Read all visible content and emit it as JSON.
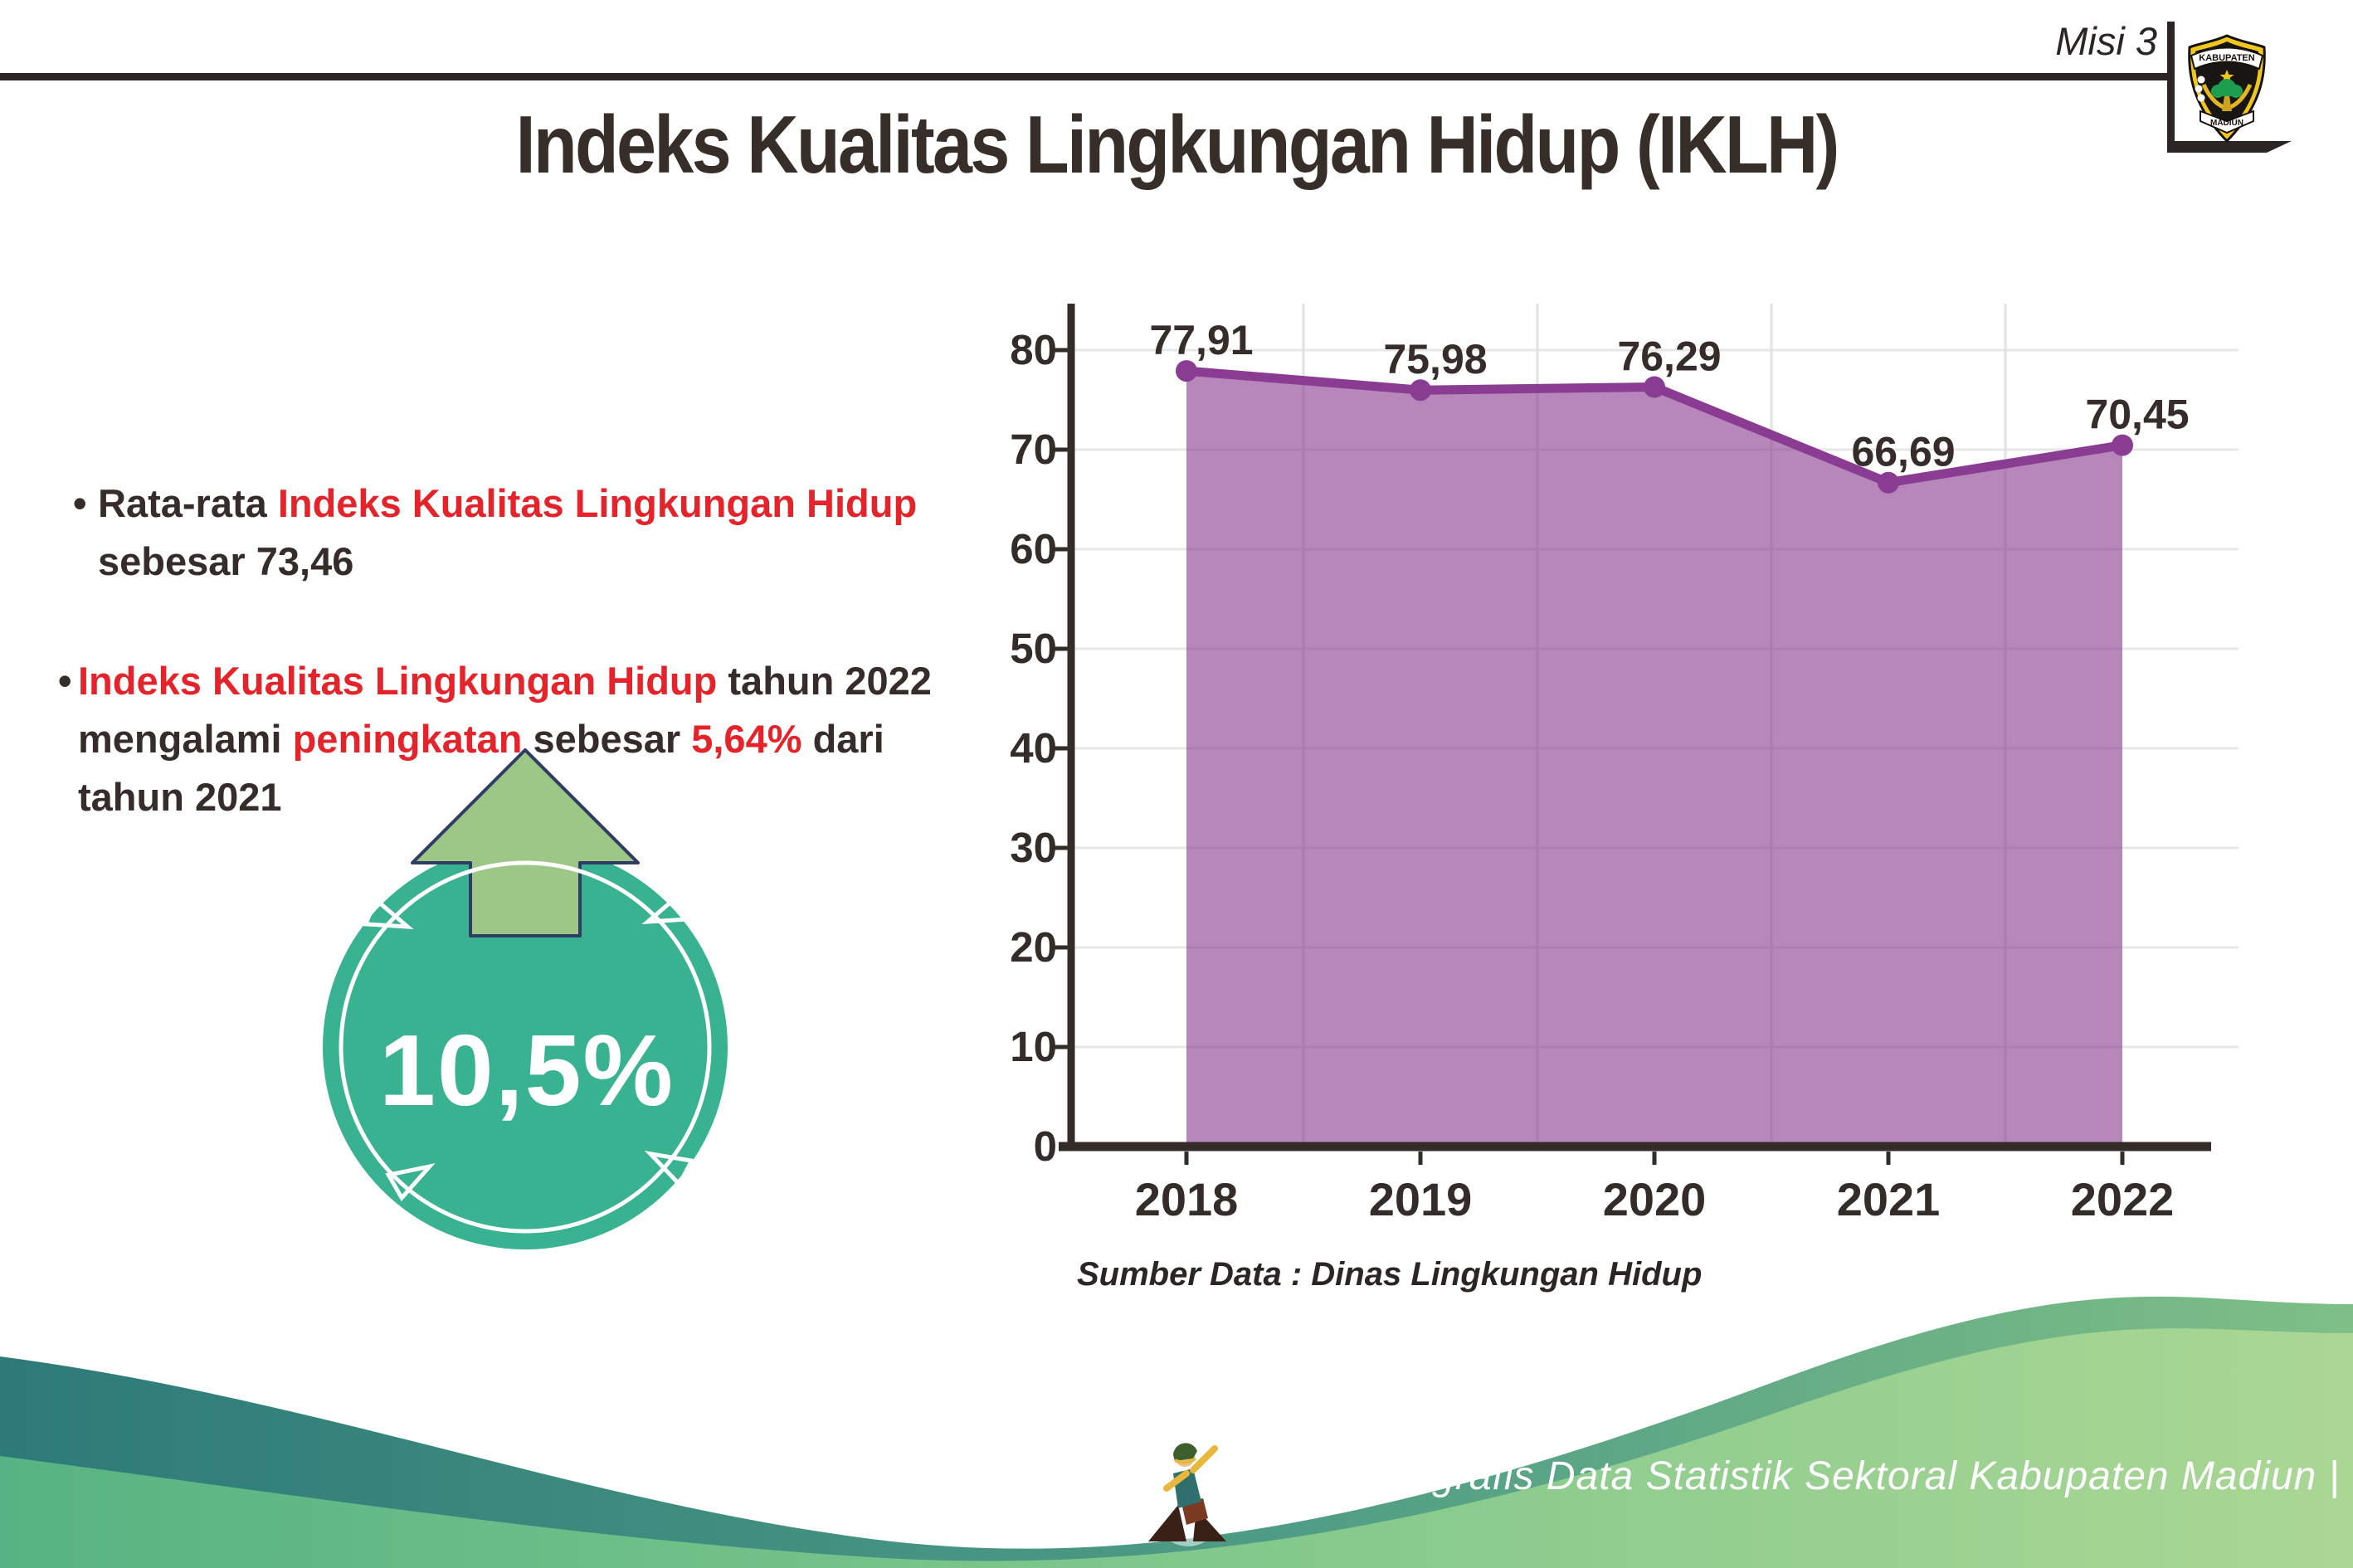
{
  "header": {
    "misi_label": "Misi 3",
    "logo": {
      "top_text": "KABUPATEN",
      "bottom_text": "MADIUN"
    }
  },
  "title": "Indeks Kualitas Lingkungan Hidup (IKLH)",
  "bullets": {
    "marker": "•",
    "b1_dark1": "Rata-rata ",
    "b1_red1": "Indeks Kualitas Lingkungan Hidup",
    "b1_dark2": "sebesar 73,46",
    "b2_red1": "Indeks Kualitas Lingkungan Hidup",
    "b2_dark1": " tahun 2022",
    "b2_dark2": "mengalami ",
    "b2_red2": "peningkatan",
    "b2_dark3": " sebesar ",
    "b2_red3": "5,64%",
    "b2_dark4": " dari",
    "b2_dark5": "tahun 2021"
  },
  "badge": {
    "value": "10,5%"
  },
  "chart_data": {
    "type": "area",
    "title": "",
    "xlabel": "",
    "ylabel": "",
    "categories": [
      "2018",
      "2019",
      "2020",
      "2021",
      "2022"
    ],
    "values": [
      77.91,
      75.98,
      76.29,
      66.69,
      70.45
    ],
    "value_labels": [
      "77,91",
      "75,98",
      "76,29",
      "66,69",
      "70,45"
    ],
    "ylim": [
      0,
      80
    ],
    "ytick_step": 10,
    "ytick_labels": [
      "0",
      "10",
      "20",
      "30",
      "40",
      "50",
      "60",
      "70",
      "80"
    ],
    "grid": {
      "horizontal": true,
      "vertical_between_categories": true
    },
    "legend": "none",
    "source_note": "Sumber Data : Dinas Lingkungan Hidup"
  },
  "footer": {
    "caption": "Media Infografis Data Statistik Sektoral Kabupaten Madiun |"
  },
  "colors": {
    "text_dark": "#362d2a",
    "accent_red": "#e4232b",
    "chart_line_purple": "#8a3c92",
    "chart_fill_purple": "#8a3c92",
    "chart_fill_opacity": "0.62",
    "axis_dark": "#332c28",
    "grid_gray": "#e7e7e7",
    "badge_teal": "#38b291",
    "badge_arrow_green": "#9dc786",
    "badge_arrow_outline_navy": "#2f3c63",
    "footer_teal": "#2d7a79",
    "footer_green_light": "#abd794"
  }
}
